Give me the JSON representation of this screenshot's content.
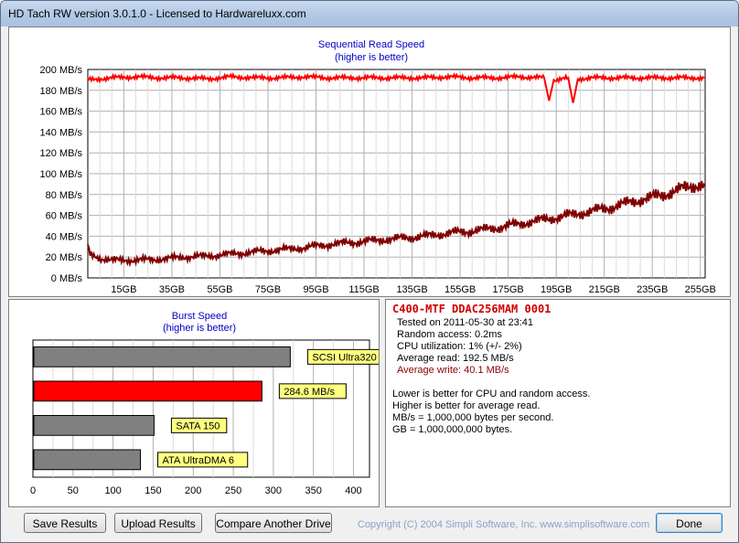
{
  "window": {
    "title": "HD Tach RW version 3.0.1.0 - Licensed to Hardwareluxx.com"
  },
  "read_chart": {
    "title": "Sequential Read Speed",
    "subtitle": "(higher is better)",
    "y_ticks": [
      "200 MB/s",
      "180 MB/s",
      "160 MB/s",
      "140 MB/s",
      "120 MB/s",
      "100 MB/s",
      "80 MB/s",
      "60 MB/s",
      "40 MB/s",
      "20 MB/s",
      "0 MB/s"
    ],
    "x_ticks": [
      "15GB",
      "35GB",
      "55GB",
      "75GB",
      "95GB",
      "115GB",
      "135GB",
      "155GB",
      "175GB",
      "195GB",
      "215GB",
      "235GB",
      "255GB"
    ]
  },
  "burst_chart": {
    "title": "Burst Speed",
    "subtitle": "(higher is better)",
    "x_ticks": [
      "0",
      "50",
      "100",
      "150",
      "200",
      "250",
      "300",
      "350",
      "400"
    ],
    "bars": [
      {
        "label": "SCSI Ultra320",
        "value": 320,
        "color": "#808080"
      },
      {
        "label": "284.6 MB/s",
        "value": 284.6,
        "color": "#ff0000"
      },
      {
        "label": "SATA 150",
        "value": 150,
        "color": "#808080"
      },
      {
        "label": "ATA UltraDMA 6",
        "value": 133,
        "color": "#808080"
      }
    ]
  },
  "info": {
    "drive": "C400-MTF DDAC256MAM 0001",
    "tested": "Tested on 2011-05-30 at 23:41",
    "random_access": "Random access: 0.2ms",
    "cpu": "CPU utilization: 1% (+/- 2%)",
    "avg_read": "Average read: 192.5 MB/s",
    "avg_write": "Average write: 40.1 MB/s",
    "notes": [
      "Lower is better for CPU and random access.",
      "Higher is better for average read.",
      "MB/s = 1,000,000 bytes per second.",
      "GB = 1,000,000,000 bytes."
    ]
  },
  "buttons": {
    "save": "Save Results",
    "upload": "Upload Results",
    "compare": "Compare Another Drive",
    "done": "Done"
  },
  "copyright": "Copyright (C) 2004 Simpli Software, Inc. www.simplisoftware.com",
  "chart_data": [
    {
      "type": "line",
      "title": "Sequential Read Speed",
      "subtitle": "(higher is better)",
      "xlabel": "",
      "ylabel": "",
      "x_unit": "GB",
      "y_unit": "MB/s",
      "xlim": [
        0,
        257
      ],
      "ylim": [
        0,
        200
      ],
      "grid": true,
      "series": [
        {
          "name": "Average read",
          "color": "#ff0000",
          "x": [
            0,
            10,
            20,
            30,
            40,
            50,
            60,
            70,
            80,
            90,
            100,
            110,
            120,
            130,
            140,
            150,
            160,
            170,
            180,
            190,
            192,
            194,
            200,
            202,
            204,
            210,
            220,
            230,
            240,
            250,
            257
          ],
          "y": [
            190,
            192,
            193,
            192,
            192,
            191,
            193,
            192,
            192,
            193,
            192,
            192,
            192,
            192,
            192,
            193,
            192,
            192,
            193,
            192,
            170,
            190,
            192,
            168,
            191,
            192,
            192,
            192,
            192,
            192,
            192
          ]
        },
        {
          "name": "Average write",
          "color": "#800000",
          "x": [
            0,
            1,
            5,
            10,
            20,
            30,
            40,
            50,
            60,
            70,
            80,
            90,
            100,
            110,
            120,
            130,
            140,
            150,
            160,
            170,
            180,
            190,
            200,
            210,
            220,
            230,
            240,
            245,
            250,
            255,
            257
          ],
          "y": [
            30,
            22,
            19,
            17,
            17,
            18,
            20,
            21,
            23,
            25,
            27,
            29,
            32,
            34,
            36,
            38,
            40,
            43,
            45,
            48,
            52,
            56,
            60,
            64,
            69,
            75,
            80,
            84,
            87,
            90,
            88
          ]
        }
      ]
    },
    {
      "type": "bar",
      "title": "Burst Speed",
      "subtitle": "(higher is better)",
      "orientation": "horizontal",
      "categories": [
        "SCSI Ultra320",
        "284.6 MB/s",
        "SATA 150",
        "ATA UltraDMA 6"
      ],
      "values": [
        320,
        284.6,
        150,
        133
      ],
      "xlim": [
        0,
        420
      ],
      "grid": true
    }
  ]
}
